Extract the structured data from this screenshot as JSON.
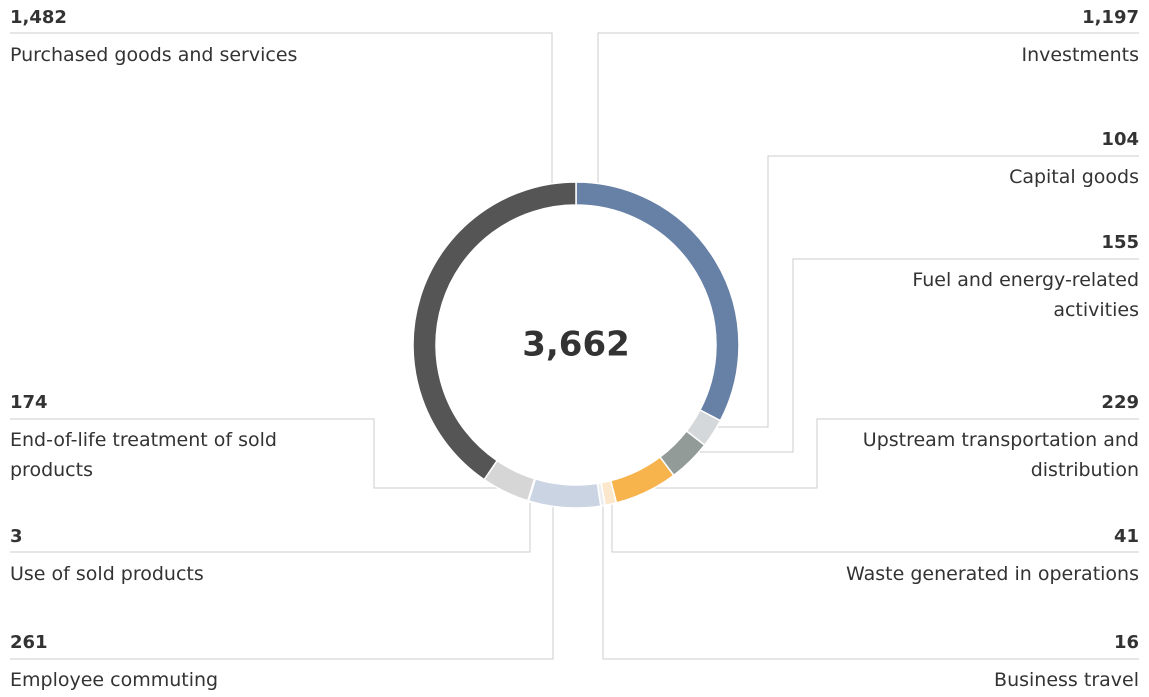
{
  "chart_data": {
    "type": "pie",
    "center_label": "3,662",
    "categories": [
      "Investments",
      "Capital goods",
      "Fuel and energy-related activities",
      "Upstream transportation and distribution",
      "Waste generated in operations",
      "Business travel",
      "Employee commuting",
      "Use of sold products",
      "End-of-life treatment of sold products",
      "Purchased goods and services"
    ],
    "values": [
      1197,
      104,
      155,
      229,
      41,
      16,
      261,
      3,
      174,
      1482
    ],
    "value_labels": [
      "1,197",
      "104",
      "155",
      "229",
      "41",
      "16",
      "261",
      "3",
      "174",
      "1,482"
    ],
    "colors": [
      "#6680a6",
      "#d5d8da",
      "#939b98",
      "#f7b34c",
      "#fbe8cc",
      "#eeeeee",
      "#cad4e3",
      "#dddddd",
      "#d6d6d6",
      "#555555"
    ]
  }
}
